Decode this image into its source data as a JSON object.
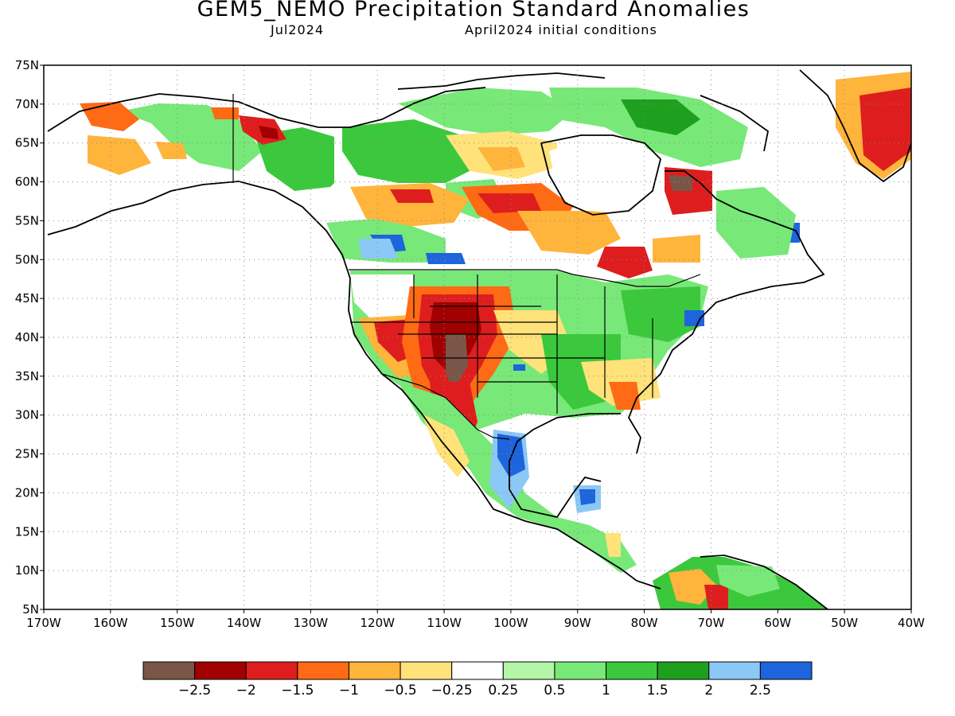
{
  "title": "GEM5_NEMO Precipitation Standard Anomalies",
  "subtitle_left": "Jul2024",
  "subtitle_right": "April2024 initial conditions",
  "lat_labels": [
    "75N",
    "70N",
    "65N",
    "60N",
    "55N",
    "50N",
    "45N",
    "40N",
    "35N",
    "30N",
    "25N",
    "20N",
    "15N",
    "10N",
    "5N"
  ],
  "lon_labels": [
    "170W",
    "160W",
    "150W",
    "140W",
    "130W",
    "120W",
    "110W",
    "100W",
    "90W",
    "80W",
    "70W",
    "60W",
    "50W",
    "40W"
  ],
  "colorbar": {
    "colors": [
      "#7a5648",
      "#a00000",
      "#de1e1e",
      "#ff6a14",
      "#ffb43c",
      "#ffe27a",
      "#ffffff",
      "#b4f5a8",
      "#78e878",
      "#3cc83c",
      "#1ea01e",
      "#8cc8f5",
      "#1e64dc"
    ],
    "labels": [
      "-2.5",
      "-2",
      "-1.5",
      "-1",
      "-0.5",
      "-0.25",
      "0.25",
      "0.5",
      "1",
      "1.5",
      "2",
      "2.5"
    ]
  }
}
